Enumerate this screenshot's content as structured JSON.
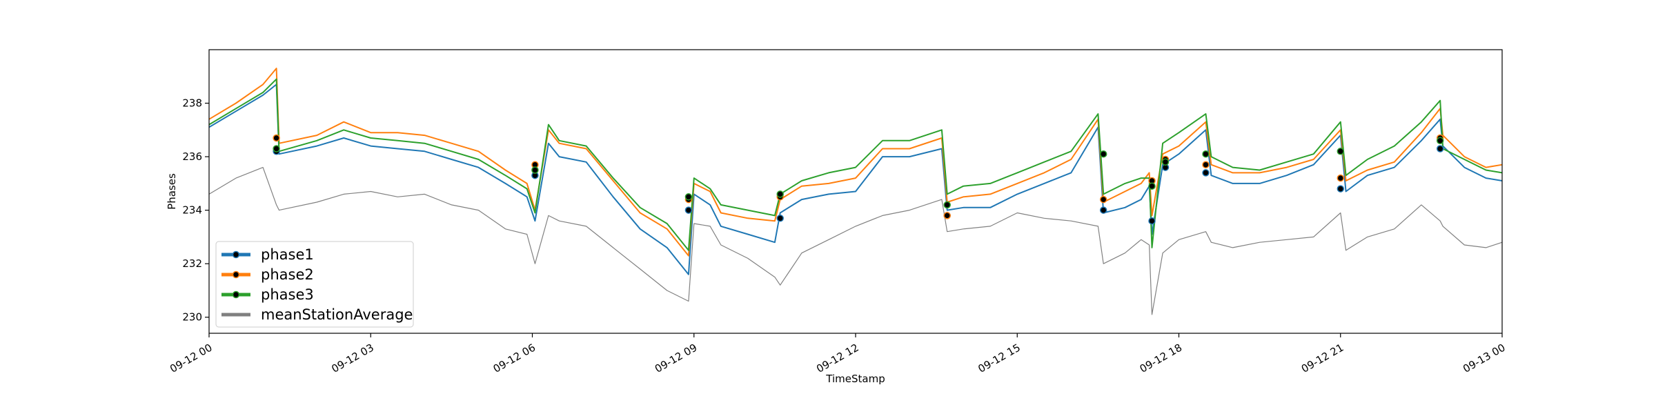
{
  "chart_data": {
    "type": "line",
    "xlabel": "TimeStamp",
    "ylabel": "Phases",
    "x_ticks": [
      "09-12 00",
      "09-12 03",
      "09-12 06",
      "09-12 09",
      "09-12 12",
      "09-12 15",
      "09-12 18",
      "09-12 21",
      "09-13 00"
    ],
    "y_ticks": [
      230,
      232,
      234,
      236,
      238
    ],
    "xlim": [
      0,
      24
    ],
    "ylim": [
      229.4,
      240.0
    ],
    "grid": false,
    "legend_position": "lower-left",
    "colors": {
      "phase1": "#1f77b4",
      "phase2": "#ff7f0e",
      "phase3": "#2ca02c",
      "meanStationAverage": "#808080"
    },
    "x_hours": [
      0,
      0.5,
      1.0,
      1.25,
      1.3,
      2,
      2.5,
      3,
      3.5,
      4,
      4.5,
      5,
      5.5,
      5.9,
      6.05,
      6.3,
      6.5,
      7,
      7.5,
      8,
      8.5,
      8.9,
      9.0,
      9.3,
      9.5,
      10,
      10.5,
      10.6,
      11,
      11.5,
      12,
      12.5,
      13,
      13.6,
      13.7,
      14,
      14.5,
      15,
      15.5,
      16,
      16.5,
      16.6,
      17,
      17.3,
      17.45,
      17.5,
      17.7,
      18,
      18.5,
      18.6,
      19,
      19.5,
      20,
      20.5,
      21,
      21.1,
      21.5,
      22,
      22.5,
      22.85,
      22.9,
      23.3,
      23.7,
      24
    ],
    "series": [
      {
        "name": "phase1",
        "values": [
          237.1,
          237.7,
          238.3,
          238.7,
          236.1,
          236.4,
          236.7,
          236.4,
          236.3,
          236.2,
          235.9,
          235.6,
          235.0,
          234.5,
          233.6,
          236.5,
          236.0,
          235.8,
          234.5,
          233.3,
          232.6,
          231.6,
          234.6,
          234.2,
          233.4,
          233.1,
          232.8,
          233.9,
          234.4,
          234.6,
          234.7,
          236.0,
          236.0,
          236.3,
          234.0,
          234.1,
          234.1,
          234.6,
          235.0,
          235.4,
          237.1,
          233.9,
          234.1,
          234.4,
          234.9,
          233.1,
          235.7,
          236.1,
          237.0,
          235.3,
          235.0,
          235.0,
          235.3,
          235.7,
          236.8,
          234.7,
          235.3,
          235.6,
          236.6,
          237.4,
          236.4,
          235.6,
          235.2,
          235.1
        ]
      },
      {
        "name": "phase2",
        "values": [
          237.4,
          238.0,
          238.7,
          239.3,
          236.5,
          236.8,
          237.3,
          236.9,
          236.9,
          236.8,
          236.5,
          236.2,
          235.5,
          235.0,
          234.0,
          237.0,
          236.5,
          236.3,
          235.1,
          233.9,
          233.3,
          232.3,
          235.0,
          234.7,
          233.9,
          233.7,
          233.6,
          234.4,
          234.9,
          235.0,
          235.2,
          236.3,
          236.3,
          236.7,
          234.3,
          234.5,
          234.6,
          235.0,
          235.4,
          235.9,
          237.4,
          234.3,
          234.7,
          235.0,
          235.4,
          233.8,
          236.1,
          236.4,
          237.3,
          235.7,
          235.4,
          235.4,
          235.6,
          235.9,
          237.0,
          235.1,
          235.5,
          235.8,
          236.9,
          237.8,
          236.8,
          236.0,
          235.6,
          235.7
        ]
      },
      {
        "name": "phase3",
        "values": [
          237.2,
          237.8,
          238.4,
          238.9,
          236.2,
          236.6,
          237.0,
          236.7,
          236.6,
          236.5,
          236.2,
          235.9,
          235.3,
          234.8,
          233.9,
          237.2,
          236.6,
          236.4,
          235.2,
          234.1,
          233.5,
          232.5,
          235.2,
          234.8,
          234.2,
          234.0,
          233.8,
          234.6,
          235.1,
          235.4,
          235.6,
          236.6,
          236.6,
          237.0,
          234.6,
          234.9,
          235.0,
          235.4,
          235.8,
          236.2,
          237.6,
          234.6,
          235.0,
          235.2,
          235.2,
          232.6,
          236.5,
          236.9,
          237.6,
          236.0,
          235.6,
          235.5,
          235.8,
          236.1,
          237.3,
          235.3,
          235.9,
          236.4,
          237.3,
          238.1,
          236.3,
          235.9,
          235.5,
          235.4
        ]
      },
      {
        "name": "meanStationAverage",
        "values": [
          234.6,
          235.2,
          235.6,
          234.2,
          234.0,
          234.3,
          234.6,
          234.7,
          234.5,
          234.6,
          234.2,
          234.0,
          233.3,
          233.1,
          232.0,
          233.8,
          233.6,
          233.4,
          232.6,
          231.8,
          231.0,
          230.6,
          233.5,
          233.4,
          232.7,
          232.2,
          231.5,
          231.2,
          232.4,
          232.9,
          233.4,
          233.8,
          234.0,
          234.4,
          233.2,
          233.3,
          233.4,
          233.9,
          233.7,
          233.6,
          233.4,
          232.0,
          232.4,
          232.9,
          232.7,
          230.1,
          232.4,
          232.9,
          233.2,
          232.8,
          232.6,
          232.8,
          232.9,
          233.0,
          233.9,
          232.5,
          233.0,
          233.3,
          234.2,
          233.6,
          233.4,
          232.7,
          232.6,
          232.8
        ]
      }
    ],
    "markers": [
      {
        "series": "phase1",
        "points": [
          [
            1.25,
            236.2
          ],
          [
            6.05,
            235.3
          ],
          [
            8.9,
            234.0
          ],
          [
            10.6,
            233.7
          ],
          [
            13.7,
            233.8
          ],
          [
            16.6,
            234.0
          ],
          [
            17.5,
            233.6
          ],
          [
            17.75,
            235.6
          ],
          [
            18.5,
            235.4
          ],
          [
            21.0,
            234.8
          ],
          [
            22.85,
            236.3
          ]
        ]
      },
      {
        "series": "phase2",
        "points": [
          [
            1.25,
            236.7
          ],
          [
            6.05,
            235.7
          ],
          [
            8.9,
            234.4
          ],
          [
            10.6,
            234.5
          ],
          [
            13.7,
            233.8
          ],
          [
            16.6,
            234.4
          ],
          [
            17.5,
            235.1
          ],
          [
            17.75,
            235.9
          ],
          [
            18.5,
            235.7
          ],
          [
            21.0,
            235.2
          ],
          [
            22.85,
            236.7
          ]
        ]
      },
      {
        "series": "phase3",
        "points": [
          [
            1.25,
            236.3
          ],
          [
            6.05,
            235.5
          ],
          [
            8.9,
            234.5
          ],
          [
            10.6,
            234.6
          ],
          [
            13.7,
            234.2
          ],
          [
            16.6,
            236.1
          ],
          [
            17.5,
            234.9
          ],
          [
            17.75,
            235.8
          ],
          [
            18.5,
            236.1
          ],
          [
            21.0,
            236.2
          ],
          [
            22.85,
            236.6
          ]
        ]
      }
    ]
  }
}
